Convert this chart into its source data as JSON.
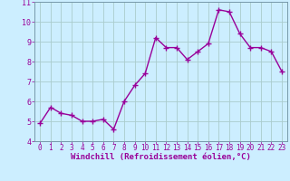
{
  "x": [
    0,
    1,
    2,
    3,
    4,
    5,
    6,
    7,
    8,
    9,
    10,
    11,
    12,
    13,
    14,
    15,
    16,
    17,
    18,
    19,
    20,
    21,
    22,
    23
  ],
  "y": [
    4.9,
    5.7,
    5.4,
    5.3,
    5.0,
    5.0,
    5.1,
    4.6,
    6.0,
    6.8,
    7.4,
    9.2,
    8.7,
    8.7,
    8.1,
    8.5,
    8.9,
    10.6,
    10.5,
    9.4,
    8.7,
    8.7,
    8.5,
    7.5
  ],
  "xlabel": "Windchill (Refroidissement éolien,°C)",
  "ylim": [
    4,
    11
  ],
  "xlim": [
    -0.5,
    23.5
  ],
  "yticks": [
    4,
    5,
    6,
    7,
    8,
    9,
    10,
    11
  ],
  "xticks": [
    0,
    1,
    2,
    3,
    4,
    5,
    6,
    7,
    8,
    9,
    10,
    11,
    12,
    13,
    14,
    15,
    16,
    17,
    18,
    19,
    20,
    21,
    22,
    23
  ],
  "line_color": "#990099",
  "marker": "+",
  "background_color": "#cceeff",
  "grid_color": "#aacccc",
  "label_color": "#990099",
  "tick_color": "#990099",
  "tick_fontsize": 5.5,
  "xlabel_fontsize": 6.5,
  "linewidth": 1.0,
  "markersize": 4,
  "markeredgewidth": 1.0
}
